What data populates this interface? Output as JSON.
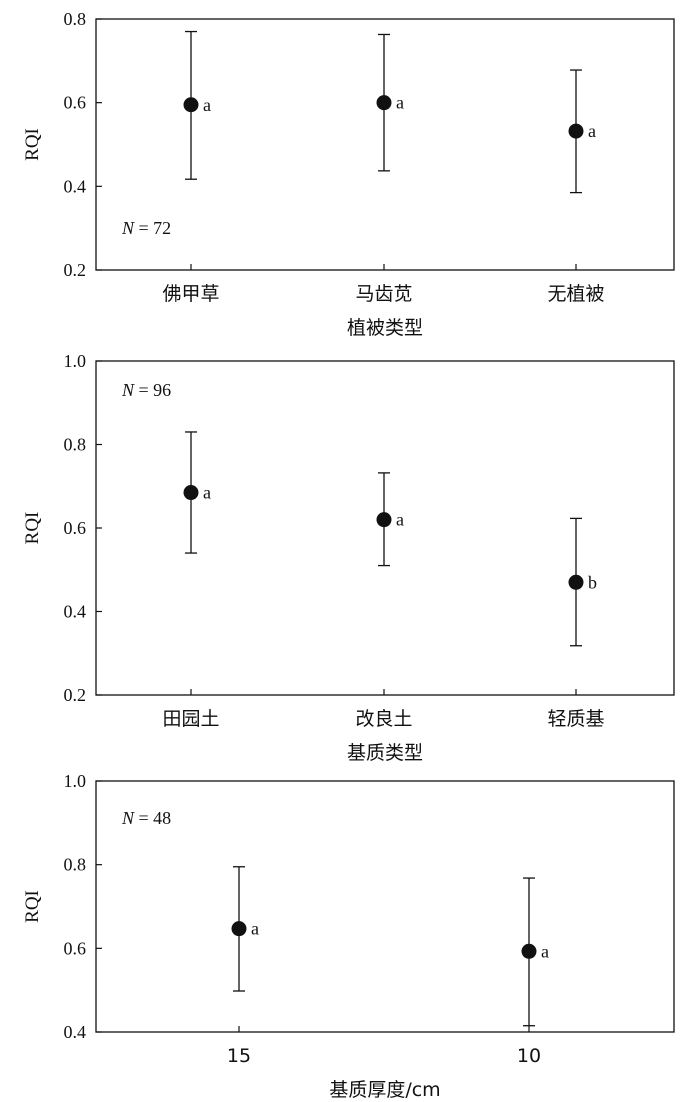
{
  "chart_data": [
    {
      "type": "scatter",
      "xlabel": "植被类型",
      "ylabel": "RQI",
      "ylim": [
        0.2,
        0.8
      ],
      "yticks": [
        "0.2",
        "0.4",
        "0.6",
        "0.8"
      ],
      "categories": [
        "佛甲草",
        "马齿苋",
        "无植被"
      ],
      "values": [
        0.595,
        0.6,
        0.532
      ],
      "error_low": [
        0.417,
        0.437,
        0.385
      ],
      "error_high": [
        0.77,
        0.763,
        0.678
      ],
      "letters": [
        "a",
        "a",
        "a"
      ],
      "n_label": {
        "prefix": "N",
        "text": " = 72",
        "placement": "bottom-left"
      },
      "grid": false
    },
    {
      "type": "scatter",
      "xlabel": "基质类型",
      "ylabel": "RQI",
      "ylim": [
        0.2,
        1.0
      ],
      "yticks": [
        "0.2",
        "0.4",
        "0.6",
        "0.8",
        "1.0"
      ],
      "categories": [
        "田园土",
        "改良土",
        "轻质基"
      ],
      "values": [
        0.685,
        0.62,
        0.47
      ],
      "error_low": [
        0.54,
        0.51,
        0.318
      ],
      "error_high": [
        0.83,
        0.732,
        0.623
      ],
      "letters": [
        "a",
        "a",
        "b"
      ],
      "n_label": {
        "prefix": "N",
        "text": " = 96",
        "placement": "top-left"
      },
      "grid": false
    },
    {
      "type": "scatter",
      "xlabel": "基质厚度/cm",
      "ylabel": "RQI",
      "ylim": [
        0.4,
        1.0
      ],
      "yticks": [
        "0.4",
        "0.6",
        "0.8",
        "1.0"
      ],
      "categories": [
        "15",
        "10"
      ],
      "values": [
        0.647,
        0.593
      ],
      "error_low": [
        0.498,
        0.415
      ],
      "error_high": [
        0.795,
        0.768
      ],
      "letters": [
        "a",
        "a"
      ],
      "n_label": {
        "prefix": "N",
        "text": " = 48",
        "placement": "top-left"
      },
      "grid": false
    }
  ]
}
